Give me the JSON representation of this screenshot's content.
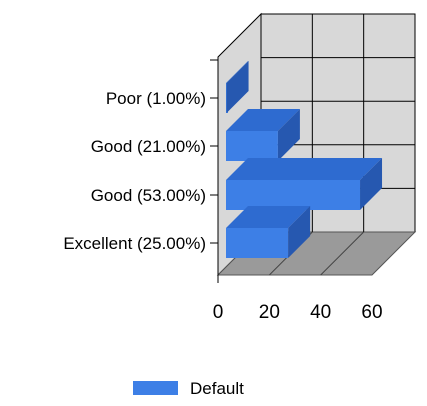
{
  "chart_data": {
    "type": "bar",
    "orientation": "horizontal",
    "projection": "3d",
    "categories": [
      "Poor (1.00%)",
      "Good (21.00%)",
      "Good (53.00%)",
      "Excellent (25.00%)"
    ],
    "series": [
      {
        "name": "Default",
        "values": [
          1,
          21,
          53,
          25
        ],
        "color": "#3d7fe6"
      }
    ],
    "x_ticks": [
      "0",
      "20",
      "40",
      "60"
    ],
    "xlim": [
      0,
      60
    ],
    "grid": true,
    "legend": {
      "position": "bottom"
    },
    "title": "",
    "xlabel": "",
    "ylabel": "",
    "colors": {
      "wall": "#d8d8d8",
      "floor": "#9a9a9a",
      "grid": "#000000"
    }
  }
}
